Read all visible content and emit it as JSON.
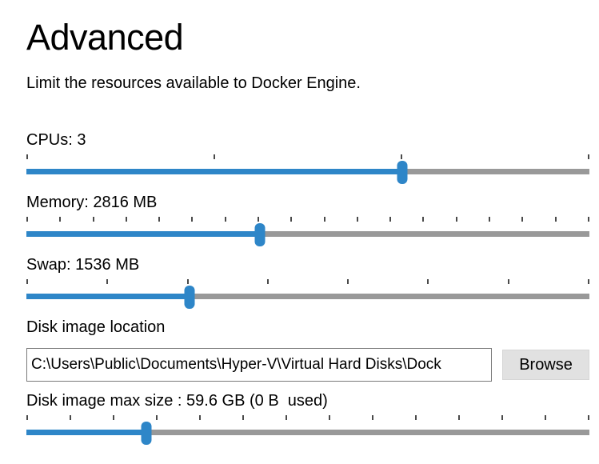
{
  "page": {
    "title": "Advanced",
    "description": "Limit the resources available to Docker Engine."
  },
  "sliders": {
    "cpus": {
      "label": "CPUs: 3",
      "ticks": 4,
      "percent": 66.8
    },
    "memory": {
      "label": "Memory: 2816 MB",
      "ticks": 18,
      "percent": 41.5
    },
    "swap": {
      "label": "Swap: 1536 MB",
      "ticks": 8,
      "percent": 29.0
    },
    "disk_size": {
      "label": "Disk image max size : 59.6 GB (0 B  used)",
      "ticks": 14,
      "percent": 21.3
    }
  },
  "disk_location": {
    "label": "Disk image location",
    "path": "C:\\Users\\Public\\Documents\\Hyper-V\\Virtual Hard Disks\\Dock",
    "browse_label": "Browse"
  },
  "colors": {
    "accent": "#2e86c8",
    "track": "#999999",
    "tick": "#4a4a4a"
  }
}
